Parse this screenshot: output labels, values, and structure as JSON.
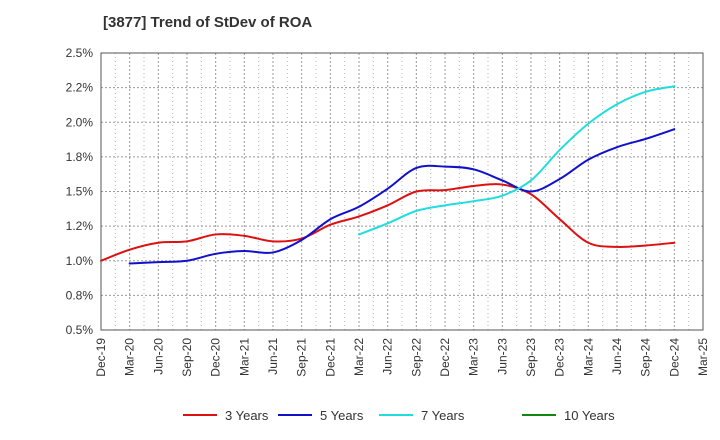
{
  "chart_data": {
    "type": "line",
    "title": "[3877]  Trend of StDev of ROA",
    "xlabel": "",
    "ylabel": "",
    "grid": true,
    "legend_position": "bottom",
    "ylim": [
      0.5,
      2.5
    ],
    "y_ticks": [
      "0.5%",
      "0.8%",
      "1.0%",
      "1.2%",
      "1.5%",
      "1.8%",
      "2.0%",
      "2.2%",
      "2.5%"
    ],
    "x": [
      "Dec-19",
      "Mar-20",
      "Jun-20",
      "Sep-20",
      "Dec-20",
      "Mar-21",
      "Jun-21",
      "Sep-21",
      "Dec-21",
      "Mar-22",
      "Jun-22",
      "Sep-22",
      "Dec-22",
      "Mar-23",
      "Jun-23",
      "Sep-23",
      "Dec-23",
      "Mar-24",
      "Jun-24",
      "Sep-24",
      "Dec-24",
      "Mar-25"
    ],
    "series": [
      {
        "name": "3 Years",
        "color": "#dd1111",
        "values": [
          1.0,
          1.08,
          1.13,
          1.14,
          1.19,
          1.18,
          1.14,
          1.16,
          1.26,
          1.32,
          1.4,
          1.5,
          1.51,
          1.54,
          1.55,
          1.48,
          1.3,
          1.13,
          1.1,
          1.11,
          1.13,
          null
        ]
      },
      {
        "name": "5 Years",
        "color": "#1111cc",
        "values": [
          null,
          0.98,
          0.99,
          1.0,
          1.05,
          1.07,
          1.06,
          1.15,
          1.3,
          1.39,
          1.52,
          1.67,
          1.68,
          1.66,
          1.58,
          1.5,
          1.59,
          1.73,
          1.82,
          1.88,
          1.95,
          null
        ]
      },
      {
        "name": "7 Years",
        "color": "#22dddd",
        "values": [
          null,
          null,
          null,
          null,
          null,
          null,
          null,
          null,
          null,
          1.19,
          1.27,
          1.36,
          1.4,
          1.43,
          1.47,
          1.58,
          1.8,
          1.99,
          2.13,
          2.22,
          2.26,
          null
        ]
      },
      {
        "name": "10 Years",
        "color": "#118811",
        "values": [
          null,
          null,
          null,
          null,
          null,
          null,
          null,
          null,
          null,
          null,
          null,
          null,
          null,
          null,
          null,
          null,
          null,
          null,
          null,
          null,
          null,
          null
        ]
      }
    ]
  }
}
